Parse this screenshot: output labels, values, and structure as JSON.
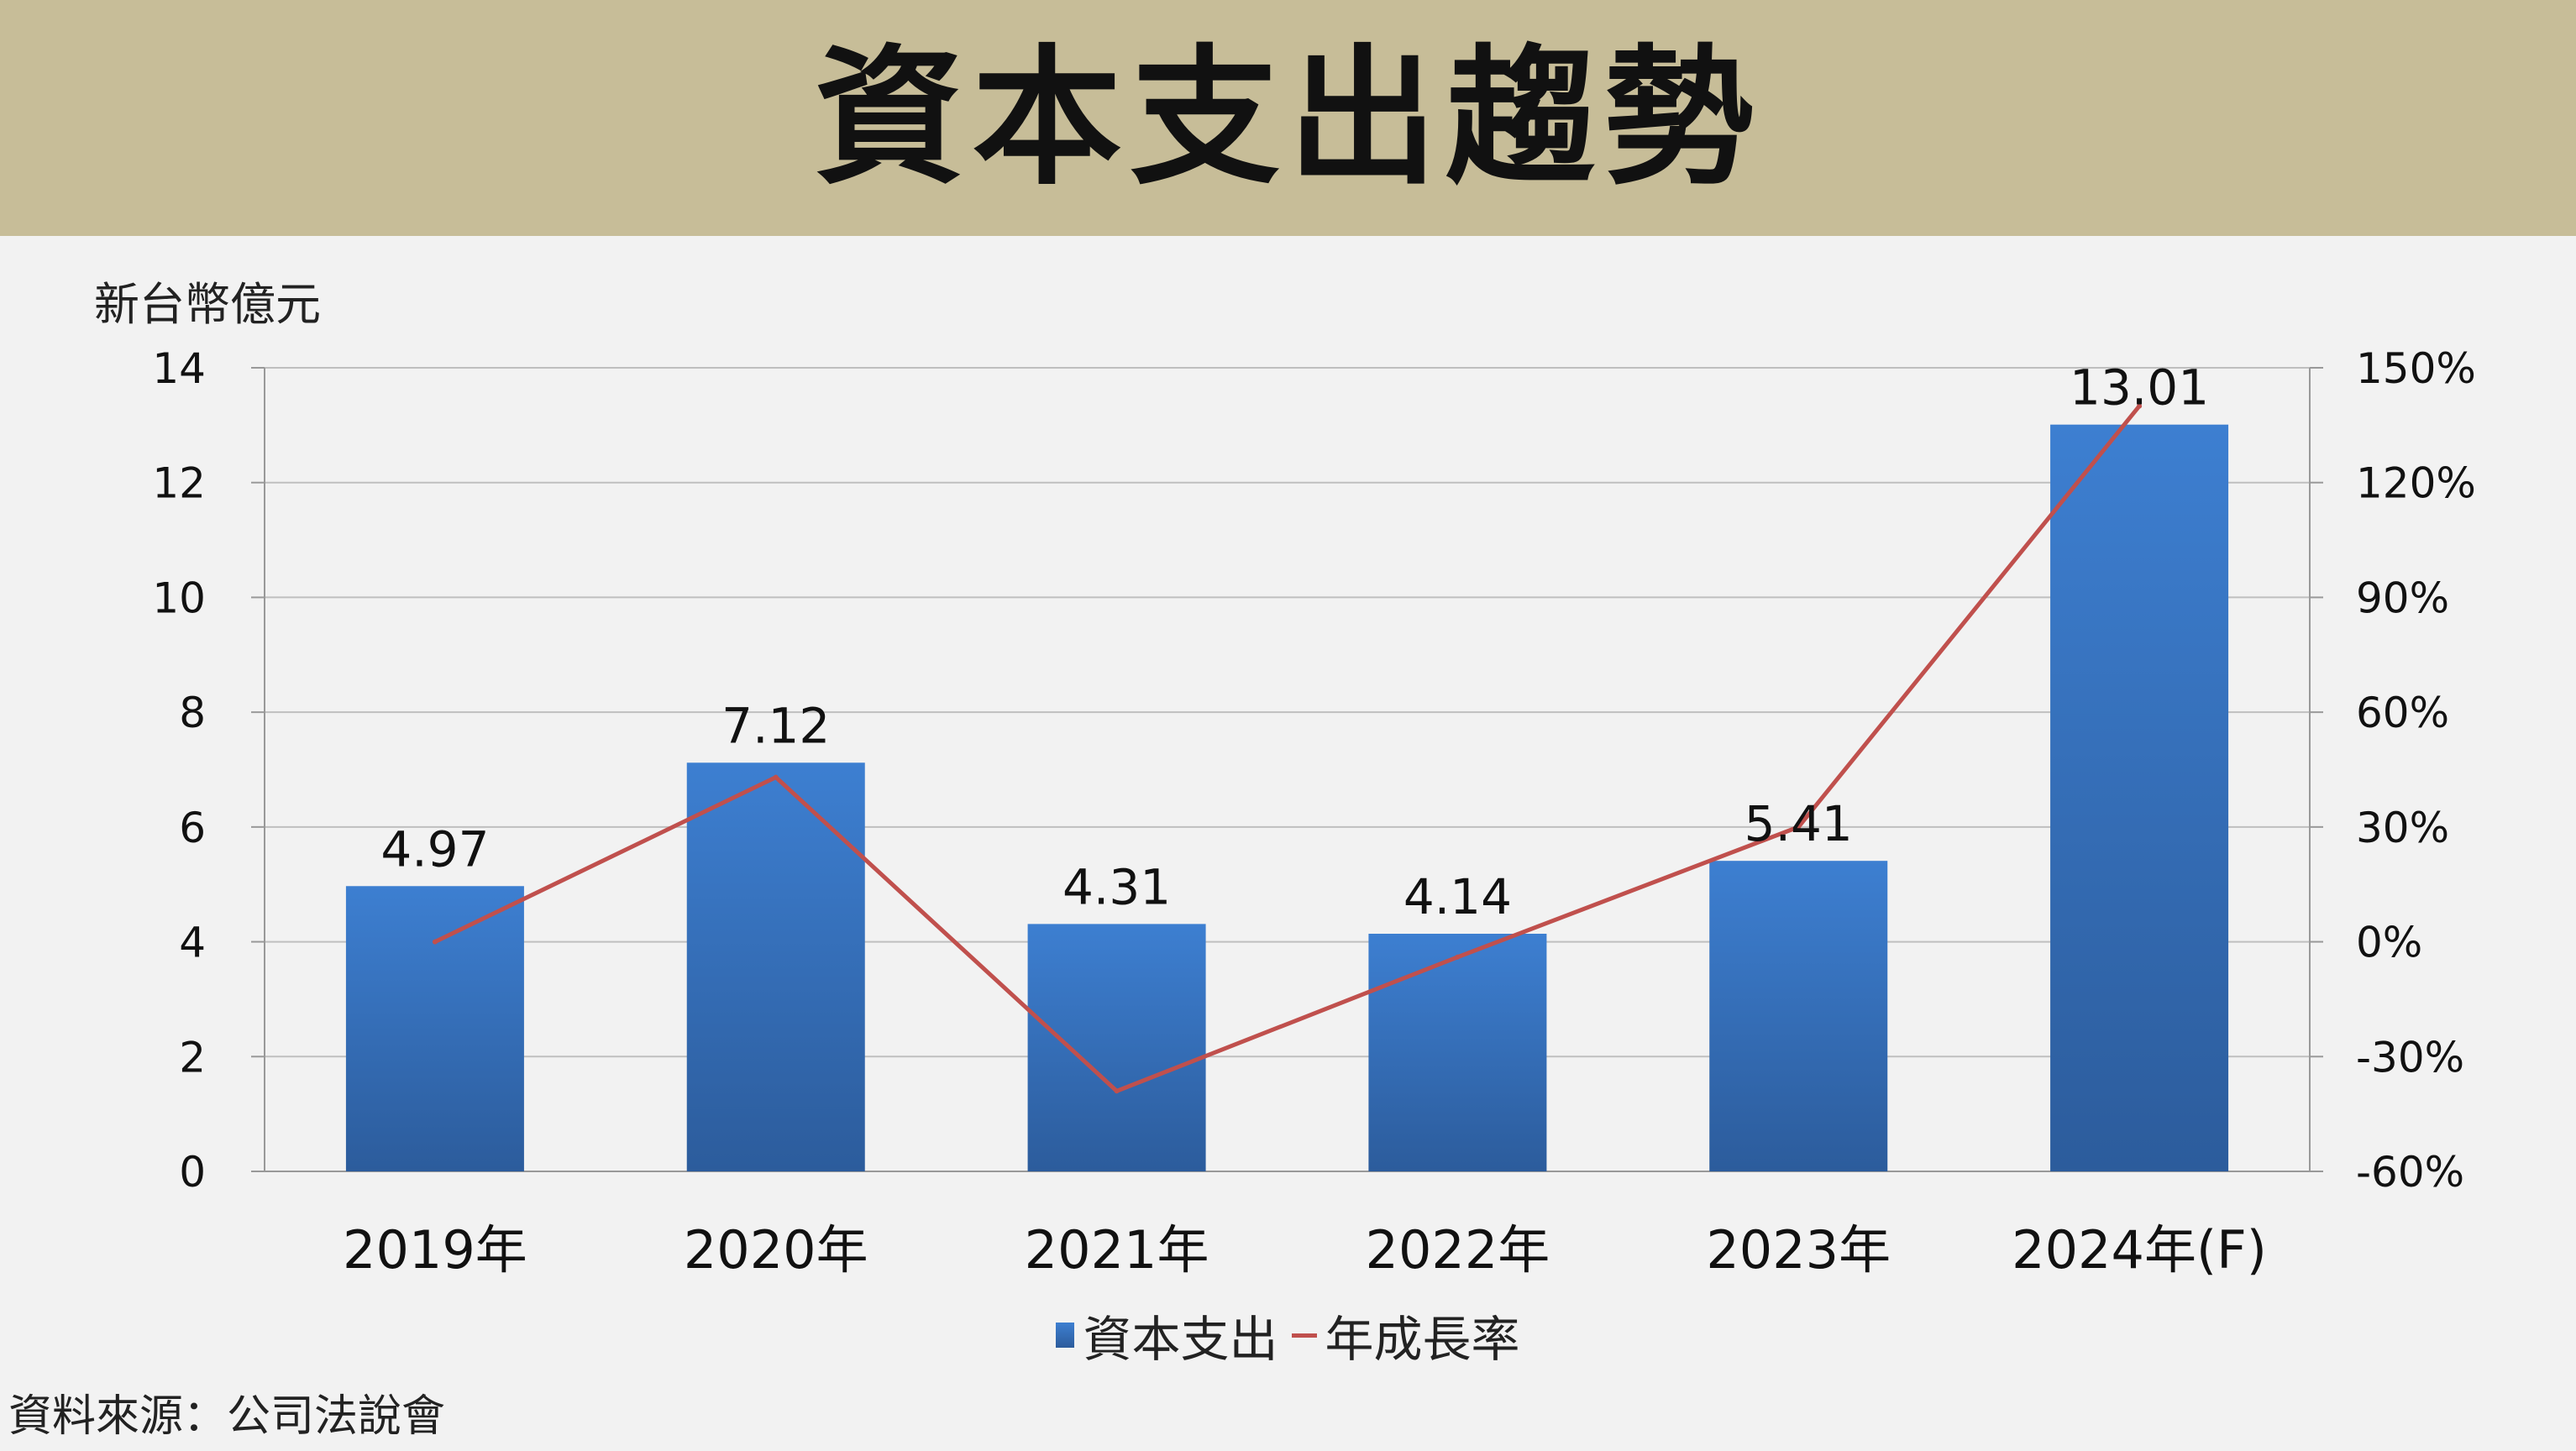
{
  "title": "資本支出趨勢",
  "unit_label": "新台幣億元",
  "source": "資料來源：公司法說會",
  "colors": {
    "bar_top": "#3d7fd1",
    "bar_bottom": "#2c5c9c",
    "line": "#c0504d",
    "header_bg": "#c7bd98"
  },
  "chart_data": {
    "type": "bar",
    "categories": [
      "2019年",
      "2020年",
      "2021年",
      "2022年",
      "2023年",
      "2024年(F)"
    ],
    "series": [
      {
        "name": "資本支出",
        "type": "bar",
        "axis": "left",
        "values": [
          4.97,
          7.12,
          4.31,
          4.14,
          5.41,
          13.01
        ]
      },
      {
        "name": "年成長率",
        "type": "line",
        "axis": "right",
        "values": [
          0,
          43,
          -39,
          -4,
          30,
          140
        ]
      }
    ],
    "data_labels": [
      "4.97",
      "7.12",
      "4.31",
      "4.14",
      "5.41",
      "13.01"
    ],
    "y_left": {
      "min": 0,
      "max": 14,
      "ticks": [
        "0",
        "2",
        "4",
        "6",
        "8",
        "10",
        "12",
        "14"
      ]
    },
    "y_right": {
      "min": -60,
      "max": 150,
      "ticks": [
        "-60%",
        "-30%",
        "0%",
        "30%",
        "60%",
        "90%",
        "120%",
        "150%"
      ]
    },
    "grid": true,
    "legend": "bottom"
  }
}
